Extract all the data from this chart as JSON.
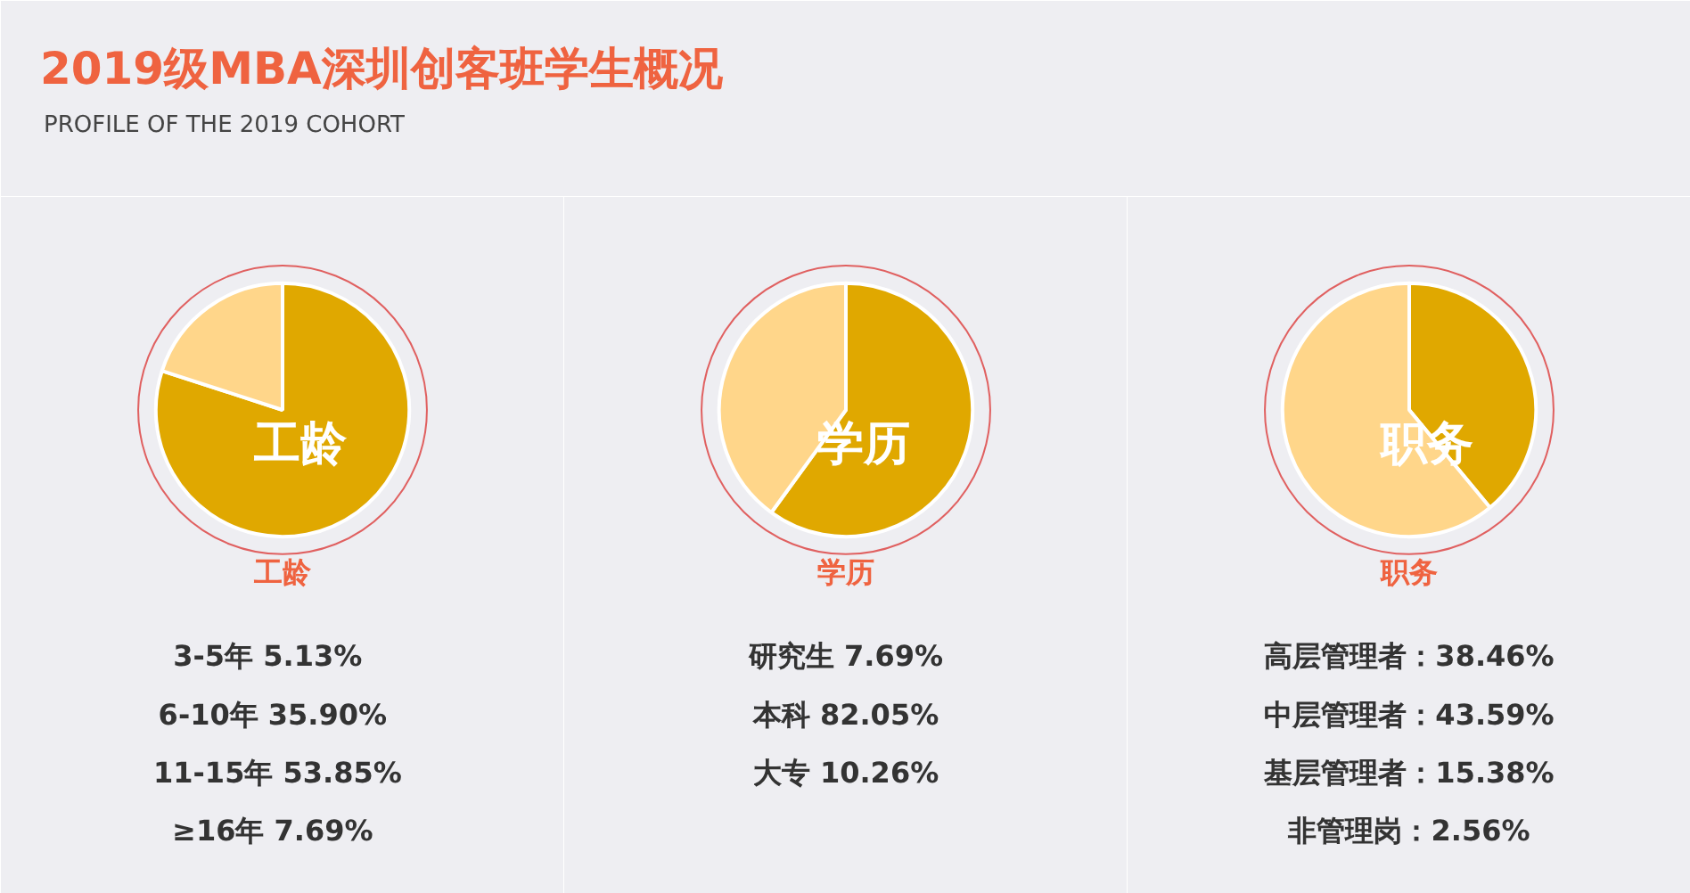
{
  "chart_data": [
    {
      "type": "other",
      "title": "2019级MBA深圳创客班学生概况",
      "subtitle": "PROFILE OF THE 2019 COHORT"
    },
    {
      "type": "pie",
      "title": "工龄",
      "categories": [
        null,
        null
      ],
      "values": [
        80,
        20
      ],
      "colors": [
        "#e0a800",
        "#ffd68a"
      ],
      "annotations": [
        "3-5年    5.13%",
        "6-10年   35.90%",
        "11-15年  53.85%",
        "≥16年   7.69%"
      ]
    },
    {
      "type": "pie",
      "title": "学历",
      "categories": [
        null,
        null
      ],
      "values": [
        60,
        40
      ],
      "colors": [
        "#e0a800",
        "#ffd68a"
      ],
      "annotations": [
        "研究生 7.69%",
        "本科 82.05%",
        "大专 10.26%"
      ]
    },
    {
      "type": "pie",
      "title": "职务",
      "categories": [
        null,
        null
      ],
      "values": [
        39,
        61
      ],
      "colors": [
        "#e0a800",
        "#ffd68a"
      ],
      "annotations": [
        "高层管理者：38.46%",
        "中层管理者：43.59%",
        "基层管理者：15.38%",
        "非管理岗：2.56%"
      ]
    }
  ]
}
